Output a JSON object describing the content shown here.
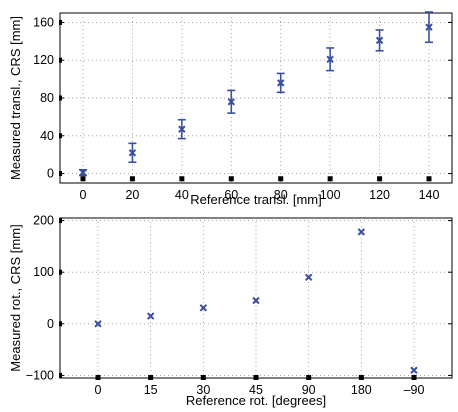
{
  "chart_data": [
    {
      "type": "scatter",
      "title": "",
      "xlabel": "Reference transl. [mm]",
      "ylabel": "Measured transl., CRS [mm]",
      "categories": [
        "0",
        "20",
        "40",
        "60",
        "80",
        "100",
        "120",
        "140"
      ],
      "ylim": [
        -10,
        170
      ],
      "yticks": [
        0,
        40,
        80,
        120,
        160
      ],
      "yticklabels": [
        "0",
        "40",
        "80",
        "120",
        "160"
      ],
      "grid": true,
      "marker_color": "#3a4fa0",
      "reference_marker_color": "#000000",
      "series": [
        {
          "marker": "x",
          "values": [
            1,
            22,
            47,
            76,
            96,
            121,
            141,
            155
          ],
          "error": [
            3,
            10,
            10,
            12,
            10,
            12,
            11,
            16
          ]
        },
        {
          "marker": "square",
          "values": [
            -5.5,
            -5.5,
            -5.5,
            -5.5,
            -5.5,
            -5.5,
            -5.5,
            -5.5
          ]
        }
      ]
    },
    {
      "type": "scatter",
      "title": "",
      "xlabel": "Reference rot. [degrees]",
      "ylabel": "Measured rot., CRS [mm]",
      "categories": [
        "0",
        "15",
        "30",
        "45",
        "90",
        "180",
        "–90"
      ],
      "ylim": [
        -105,
        205
      ],
      "yticks": [
        -100,
        0,
        100,
        200
      ],
      "yticklabels": [
        "−100",
        "0",
        "100",
        "200"
      ],
      "grid": true,
      "marker_color": "#3a4fa0",
      "reference_marker_color": "#000000",
      "series": [
        {
          "marker": "x",
          "values": [
            0,
            15,
            31,
            45,
            90,
            178,
            -90
          ],
          "error": [
            2,
            3,
            3,
            3,
            3,
            3,
            3
          ]
        },
        {
          "marker": "square",
          "values": [
            -104,
            -104,
            -104,
            -104,
            -104,
            -104,
            -104
          ]
        }
      ]
    }
  ]
}
